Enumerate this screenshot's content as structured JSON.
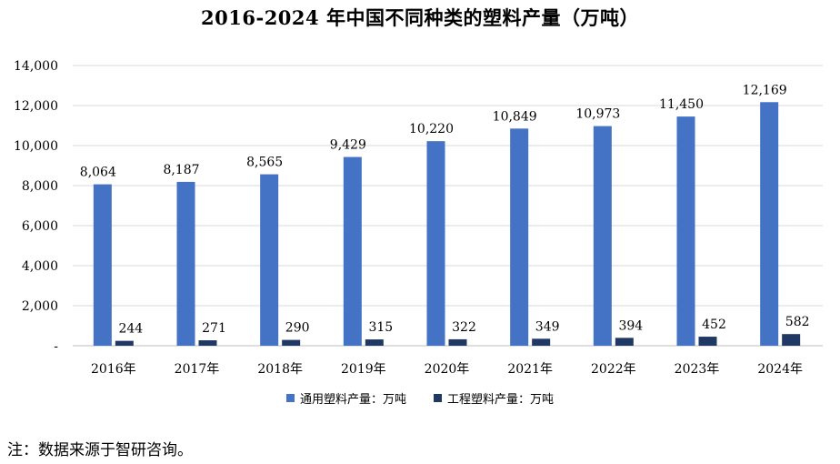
{
  "chart_data": {
    "type": "bar",
    "title": "2016-2024 年中国不同种类的塑料产量（万吨）",
    "categories": [
      "2016年",
      "2017年",
      "2018年",
      "2019年",
      "2020年",
      "2021年",
      "2022年",
      "2023年",
      "2024年"
    ],
    "series": [
      {
        "name": "通用塑料产量：万吨",
        "color": "#4472C4",
        "values": [
          8064,
          8187,
          8565,
          9429,
          10220,
          10849,
          10973,
          11450,
          12169
        ],
        "labels": [
          "8,064",
          "8,187",
          "8,565",
          "9,429",
          "10,220",
          "10,849",
          "10,973",
          "11,450",
          "12,169"
        ]
      },
      {
        "name": "工程塑料产量：万吨",
        "color": "#1F3864",
        "values": [
          244,
          271,
          290,
          315,
          322,
          349,
          394,
          452,
          582
        ],
        "labels": [
          "244",
          "271",
          "290",
          "315",
          "322",
          "349",
          "394",
          "452",
          "582"
        ]
      }
    ],
    "ylim": [
      0,
      14000
    ],
    "yticks": [
      0,
      2000,
      4000,
      6000,
      8000,
      10000,
      12000,
      14000
    ],
    "ytick_labels": [
      "-",
      "2,000",
      "4,000",
      "6,000",
      "8,000",
      "10,000",
      "12,000",
      "14,000"
    ],
    "grid": true,
    "legend": "bottom"
  },
  "note": "注：数据来源于智研咨询。"
}
